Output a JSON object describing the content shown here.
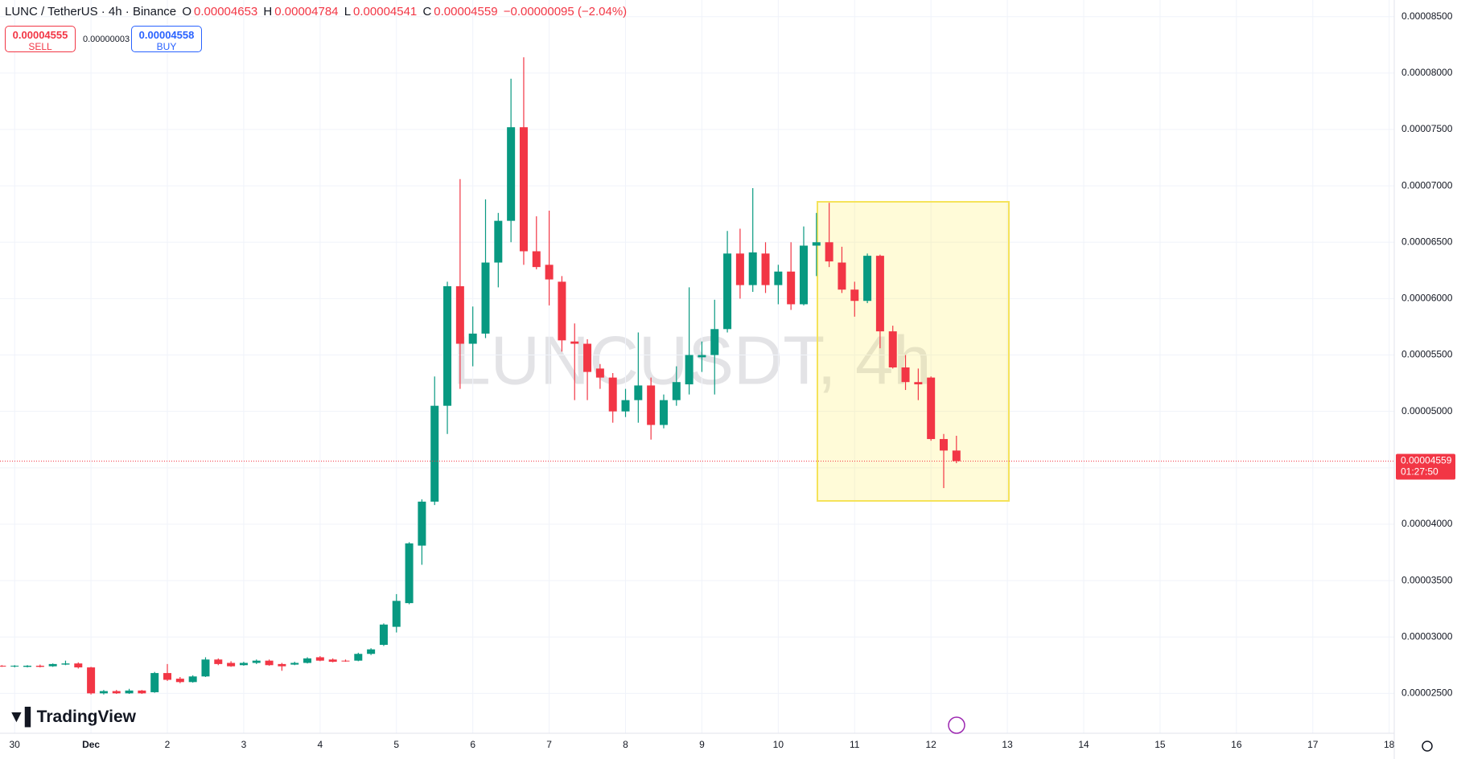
{
  "header": {
    "symbol": "LUNC / TetherUS · 4h · Binance",
    "o": "O",
    "open": "0.00004653",
    "h": "H",
    "high": "0.00004784",
    "l": "L",
    "low": "0.00004541",
    "c": "C",
    "close": "0.00004559",
    "change": "−0.00000095 (−2.04%)",
    "sell_price": "0.00004555",
    "sell": "SELL",
    "spread": "0.00000003",
    "buy_price": "0.00004558",
    "buy": "BUY"
  },
  "logo": "TradingView",
  "chart_data": {
    "type": "candlestick",
    "watermark": "LUNCUSDT, 4h",
    "open": [
      2.745e-05,
      2.74e-05,
      2.735e-05,
      2.745e-05,
      2.74e-05,
      2.755e-05,
      2.765e-05,
      2.73e-05,
      2.5e-05,
      2.52e-05,
      2.5e-05,
      2.525e-05,
      2.51e-05,
      2.68e-05,
      2.63e-05,
      2.6e-05,
      2.65e-05,
      2.8e-05,
      2.77e-05,
      2.75e-05,
      2.77e-05,
      2.79e-05,
      2.76e-05,
      2.755e-05,
      2.77e-05,
      2.82e-05,
      2.8e-05,
      2.79e-05,
      2.79e-05,
      2.85e-05,
      2.93e-05,
      3.09e-05,
      3.3e-05,
      3.81e-05,
      4.2e-05,
      5.05e-05,
      6.11e-05,
      5.6e-05,
      5.69e-05,
      6.32e-05,
      6.69e-05,
      7.52e-05,
      6.42e-05,
      6.3e-05,
      6.15e-05,
      5.62e-05,
      5.6e-05,
      5.38e-05,
      5.3e-05,
      5e-05,
      5.1e-05,
      5.23e-05,
      4.88e-05,
      5.1e-05,
      5.24e-05,
      5.48e-05,
      5.5e-05,
      5.73e-05,
      6.4e-05,
      6.12e-05,
      6.4e-05,
      6.12e-05,
      6.24e-05,
      5.95e-05,
      6.47e-05,
      6.5e-05,
      6.32e-05,
      6.08e-05,
      5.98e-05,
      6.38e-05,
      5.71e-05,
      5.39e-05,
      5.26e-05,
      5.3e-05,
      4.755e-05,
      4.653e-05
    ],
    "high": [
      2.75e-05,
      2.75e-05,
      2.75e-05,
      2.755e-05,
      2.765e-05,
      2.79e-05,
      2.775e-05,
      2.735e-05,
      2.53e-05,
      2.53e-05,
      2.54e-05,
      2.53e-05,
      2.69e-05,
      2.76e-05,
      2.645e-05,
      2.66e-05,
      2.82e-05,
      2.81e-05,
      2.785e-05,
      2.78e-05,
      2.8e-05,
      2.8e-05,
      2.77e-05,
      2.78e-05,
      2.82e-05,
      2.83e-05,
      2.81e-05,
      2.8e-05,
      2.86e-05,
      2.9e-05,
      3.12e-05,
      3.38e-05,
      3.84e-05,
      4.22e-05,
      5.31e-05,
      6.15e-05,
      7.06e-05,
      5.93e-05,
      6.88e-05,
      6.76e-05,
      7.95e-05,
      8.14e-05,
      6.73e-05,
      6.78e-05,
      6.2e-05,
      5.78e-05,
      5.64e-05,
      5.42e-05,
      5.34e-05,
      5.2e-05,
      5.7e-05,
      5.3e-05,
      5.15e-05,
      5.4e-05,
      6.1e-05,
      5.62e-05,
      5.99e-05,
      6.6e-05,
      6.62e-05,
      6.98e-05,
      6.5e-05,
      6.3e-05,
      6.5e-05,
      6.64e-05,
      6.76e-05,
      6.85e-05,
      6.46e-05,
      6.15e-05,
      6.4e-05,
      6.39e-05,
      5.76e-05,
      5.5e-05,
      5.38e-05,
      5.31e-05,
      4.8e-05,
      4.784e-05
    ],
    "low": [
      2.735e-05,
      2.73e-05,
      2.73e-05,
      2.73e-05,
      2.735e-05,
      2.75e-05,
      2.72e-05,
      2.49e-05,
      2.49e-05,
      2.495e-05,
      2.495e-05,
      2.495e-05,
      2.505e-05,
      2.61e-05,
      2.59e-05,
      2.595e-05,
      2.645e-05,
      2.75e-05,
      2.735e-05,
      2.745e-05,
      2.76e-05,
      2.745e-05,
      2.7e-05,
      2.75e-05,
      2.765e-05,
      2.785e-05,
      2.775e-05,
      2.78e-05,
      2.785e-05,
      2.84e-05,
      2.92e-05,
      3.04e-05,
      3.29e-05,
      3.64e-05,
      4.17e-05,
      4.8e-05,
      5.2e-05,
      5.4e-05,
      5.65e-05,
      6.1e-05,
      6.5e-05,
      6.3e-05,
      6.26e-05,
      5.94e-05,
      5.53e-05,
      5.1e-05,
      5.1e-05,
      5.2e-05,
      4.9e-05,
      4.95e-05,
      4.9e-05,
      4.75e-05,
      4.85e-05,
      5.05e-05,
      5.15e-05,
      5.35e-05,
      5.15e-05,
      5.7e-05,
      6e-05,
      6.06e-05,
      6.05e-05,
      5.95e-05,
      5.9e-05,
      5.94e-05,
      6.2e-05,
      6.28e-05,
      6.05e-05,
      5.84e-05,
      5.96e-05,
      5.56e-05,
      5.38e-05,
      5.19e-05,
      5.1e-05,
      4.74e-05,
      4.32e-05,
      4.541e-05
    ],
    "close": [
      2.74e-05,
      2.745e-05,
      2.745e-05,
      2.735e-05,
      2.76e-05,
      2.765e-05,
      2.73e-05,
      2.5e-05,
      2.52e-05,
      2.5e-05,
      2.525e-05,
      2.5e-05,
      2.68e-05,
      2.62e-05,
      2.6e-05,
      2.65e-05,
      2.8e-05,
      2.76e-05,
      2.74e-05,
      2.77e-05,
      2.79e-05,
      2.75e-05,
      2.74e-05,
      2.77e-05,
      2.81e-05,
      2.79e-05,
      2.78e-05,
      2.785e-05,
      2.85e-05,
      2.89e-05,
      3.11e-05,
      3.32e-05,
      3.83e-05,
      4.2e-05,
      5.05e-05,
      6.11e-05,
      5.6e-05,
      5.69e-05,
      6.32e-05,
      6.69e-05,
      7.52e-05,
      6.42e-05,
      6.28e-05,
      6.17e-05,
      5.63e-05,
      5.6e-05,
      5.35e-05,
      5.3e-05,
      5e-05,
      5.1e-05,
      5.23e-05,
      4.88e-05,
      5.1e-05,
      5.26e-05,
      5.5e-05,
      5.5e-05,
      5.73e-05,
      6.4e-05,
      6.12e-05,
      6.41e-05,
      6.12e-05,
      6.24e-05,
      5.95e-05,
      6.47e-05,
      6.5e-05,
      6.33e-05,
      6.08e-05,
      5.98e-05,
      6.38e-05,
      5.71e-05,
      5.39e-05,
      5.26e-05,
      5.24e-05,
      4.755e-05,
      4.653e-05,
      4.559e-05
    ],
    "ylim": [
      2.146e-05,
      8.648e-05
    ],
    "yticks": [
      {
        "value": 2.5e-05,
        "label": "0.00002500"
      },
      {
        "value": 3e-05,
        "label": "0.00003000"
      },
      {
        "value": 3.5e-05,
        "label": "0.00003500"
      },
      {
        "value": 4e-05,
        "label": "0.00004000"
      },
      {
        "value": 4.5e-05,
        "label": "0.00004500"
      },
      {
        "value": 5e-05,
        "label": "0.00005000"
      },
      {
        "value": 5.5e-05,
        "label": "0.00005500"
      },
      {
        "value": 6e-05,
        "label": "0.00006000"
      },
      {
        "value": 6.5e-05,
        "label": "0.00006500"
      },
      {
        "value": 7e-05,
        "label": "0.00007000"
      },
      {
        "value": 7.5e-05,
        "label": "0.00007500"
      },
      {
        "value": 8e-05,
        "label": "0.00008000"
      },
      {
        "value": 8.5e-05,
        "label": "0.00008500"
      }
    ],
    "xlim": [
      -0.15,
      109.4
    ],
    "xticks": [
      {
        "value": 1,
        "label": "30"
      },
      {
        "value": 7,
        "label": "Dec"
      },
      {
        "value": 13,
        "label": "2"
      },
      {
        "value": 19,
        "label": "3"
      },
      {
        "value": 25,
        "label": "4"
      },
      {
        "value": 31,
        "label": "5"
      },
      {
        "value": 37,
        "label": "6"
      },
      {
        "value": 43,
        "label": "7"
      },
      {
        "value": 49,
        "label": "8"
      },
      {
        "value": 55,
        "label": "9"
      },
      {
        "value": 61,
        "label": "10"
      },
      {
        "value": 67,
        "label": "11"
      },
      {
        "value": 73,
        "label": "12"
      },
      {
        "value": 79,
        "label": "13"
      },
      {
        "value": 85,
        "label": "14"
      },
      {
        "value": 91,
        "label": "15"
      },
      {
        "value": 97,
        "label": "16"
      },
      {
        "value": 103,
        "label": "17"
      },
      {
        "value": 109,
        "label": "18"
      }
    ],
    "last_price_label": "0.00004559",
    "countdown": "01:27:50",
    "colors": {
      "up": "#089981",
      "down": "#f23645"
    },
    "grid": true
  }
}
